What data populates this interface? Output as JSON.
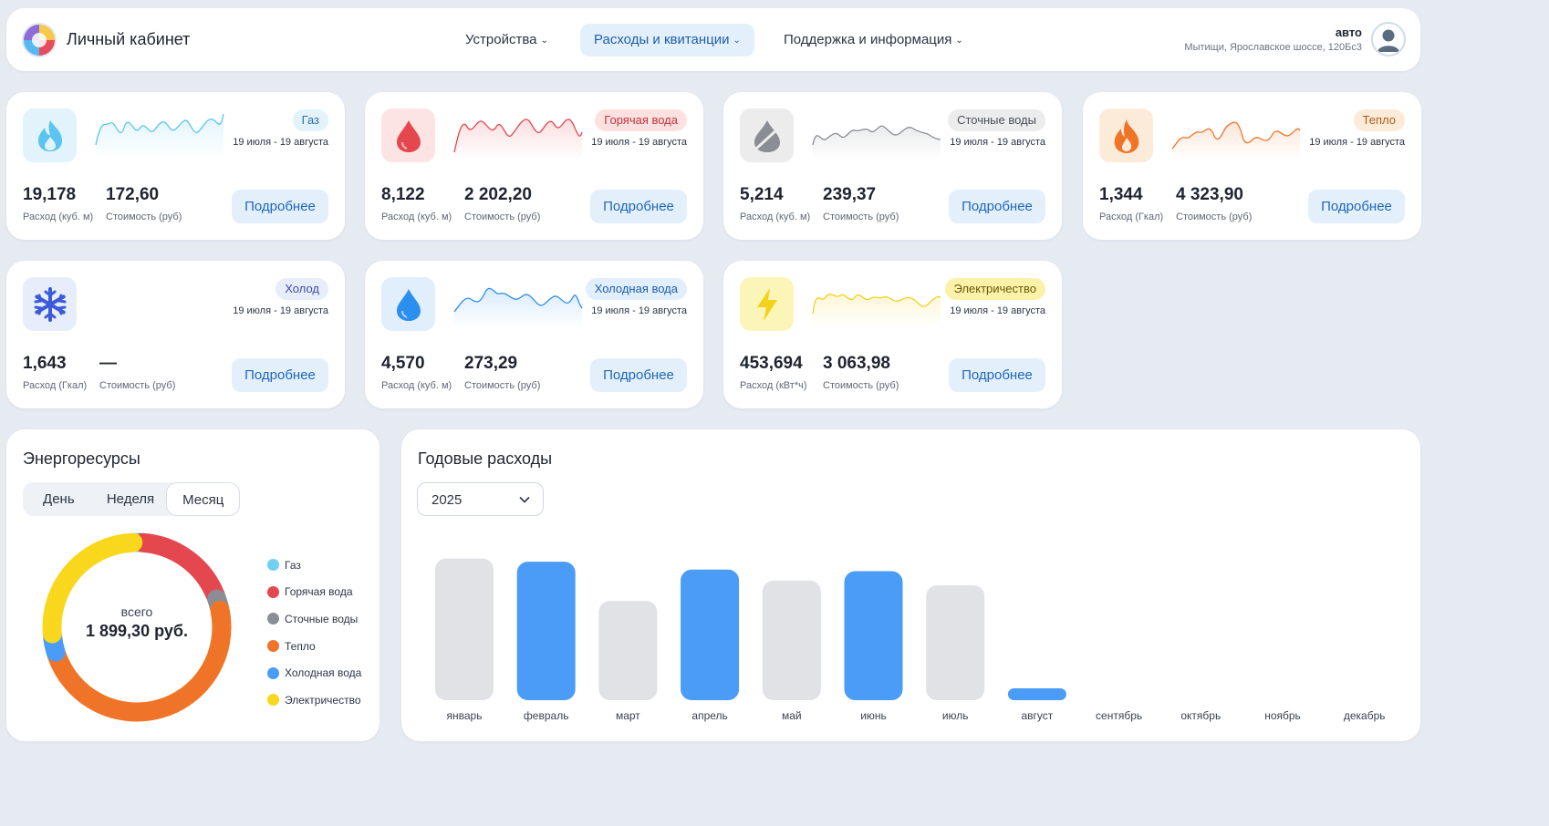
{
  "header": {
    "brand": "Личный кабинет",
    "nav": [
      {
        "label": "Устройства"
      },
      {
        "label": "Расходы и квитанции"
      },
      {
        "label": "Поддержка и информация"
      }
    ],
    "user": {
      "name": "авто",
      "address": "Мытищи, Ярославское шоссе, 120Бс3"
    }
  },
  "colors": {
    "accent": "#4a9cf7",
    "active_nav_bg": "#e3f0fb",
    "bar_past": "#e0e2e6"
  },
  "cards": [
    {
      "name": "Газ",
      "period": "19 июля - 19 августа",
      "consumption": "19,178",
      "consumption_label": "Расход (куб. м)",
      "cost": "172,60",
      "cost_label": "Стоимость (руб)",
      "button": "Подробнее",
      "icon": "gas-flame-icon",
      "color": "#5bc4f0"
    },
    {
      "name": "Горячая вода",
      "period": "19 июля - 19 августа",
      "consumption": "8,122",
      "consumption_label": "Расход (куб. м)",
      "cost": "2 202,20",
      "cost_label": "Стоимость (руб)",
      "button": "Подробнее",
      "icon": "water-drop-icon",
      "color": "#e5474f"
    },
    {
      "name": "Сточные воды",
      "period": "19 июля - 19 августа",
      "consumption": "5,214",
      "consumption_label": "Расход (куб. м)",
      "cost": "239,37",
      "cost_label": "Стоимость (руб)",
      "button": "Подробнее",
      "icon": "half-drop-icon",
      "color": "#8a8d93"
    },
    {
      "name": "Тепло",
      "period": "19 июля - 19 августа",
      "consumption": "1,344",
      "consumption_label": "Расход (Гкал)",
      "cost": "4 323,90",
      "cost_label": "Стоимость (руб)",
      "button": "Подробнее",
      "icon": "fire-icon",
      "color": "#f07427"
    },
    {
      "name": "Холод",
      "period": "19 июля - 19 августа",
      "consumption": "1,643",
      "consumption_label": "Расход (Гкал)",
      "cost": "—",
      "cost_label": "Стоимость (руб)",
      "button": "Подробнее",
      "icon": "snowflake-icon",
      "color": "#3b5bd9"
    },
    {
      "name": "Холодная вода",
      "period": "19 июля - 19 августа",
      "consumption": "4,570",
      "consumption_label": "Расход (куб. м)",
      "cost": "273,29",
      "cost_label": "Стоимость (руб)",
      "button": "Подробнее",
      "icon": "water-drop-icon",
      "color": "#2b8ff0"
    },
    {
      "name": "Электричество",
      "period": "19 июля - 19 августа",
      "consumption": "453,694",
      "consumption_label": "Расход (кВт*ч)",
      "cost": "3 063,98",
      "cost_label": "Стоимость (руб)",
      "button": "Подробнее",
      "icon": "lightning-icon",
      "color": "#f2d21a"
    }
  ],
  "energy": {
    "title": "Энергоресурсы",
    "periods": [
      "День",
      "Неделя",
      "Месяц"
    ],
    "selected_period": "Месяц",
    "caption": "всего",
    "total": "1 899,30 руб."
  },
  "yearly": {
    "title": "Годовые расходы",
    "year": "2025"
  },
  "chart_data": [
    {
      "type": "pie",
      "title": "",
      "categories": [
        "Газ",
        "Горячая вода",
        "Сточные воды",
        "Тепло",
        "Холодная вода",
        "Электричество"
      ],
      "values": [
        1.2,
        18.5,
        2.2,
        48.5,
        3.5,
        26.1
      ],
      "colors": [
        "#6fd0f2",
        "#e5474f",
        "#8a8d93",
        "#f07427",
        "#4a9cf7",
        "#f9d71c"
      ],
      "legend": "right"
    },
    {
      "type": "bar",
      "title": "",
      "categories": [
        "январь",
        "февраль",
        "март",
        "апрель",
        "май",
        "июнь",
        "июль",
        "август",
        "сентябрь",
        "октябрь",
        "ноябрь",
        "декабрь"
      ],
      "values": [
        9,
        8.8,
        6.3,
        8.3,
        7.6,
        8.2,
        7.3,
        0.6,
        null,
        null,
        null,
        null
      ],
      "highlighted": [
        false,
        true,
        false,
        true,
        false,
        true,
        false,
        true,
        false,
        false,
        false,
        false
      ],
      "ylim": [
        0,
        9.5
      ],
      "xlabel": "",
      "ylabel": "",
      "grid": false
    }
  ]
}
